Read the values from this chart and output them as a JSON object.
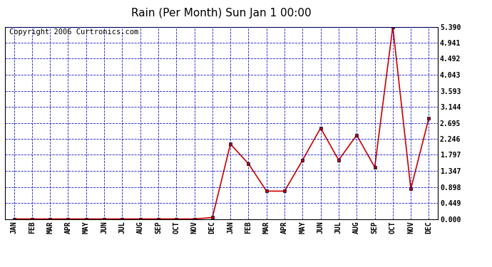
{
  "title": "Rain (Per Month) Sun Jan 1 00:00",
  "copyright": "Copyright 2006 Curtronics.com",
  "x_labels": [
    "JAN",
    "FEB",
    "MAR",
    "APR",
    "MAY",
    "JUN",
    "JUL",
    "AUG",
    "SEP",
    "OCT",
    "NOV",
    "DEC",
    "JAN",
    "FEB",
    "MAR",
    "APR",
    "MAY",
    "JUN",
    "JUL",
    "AUG",
    "SEP",
    "OCT",
    "NOV",
    "DEC"
  ],
  "y_values": [
    0.0,
    0.0,
    0.0,
    0.0,
    0.0,
    0.0,
    0.0,
    0.0,
    0.0,
    0.0,
    0.0,
    0.04,
    2.1,
    1.55,
    0.78,
    0.78,
    1.65,
    2.55,
    1.65,
    2.35,
    1.45,
    5.39,
    0.84,
    2.83
  ],
  "yticks": [
    0.0,
    0.449,
    0.898,
    1.347,
    1.797,
    2.246,
    2.695,
    3.144,
    3.593,
    4.043,
    4.492,
    4.941,
    5.39
  ],
  "ymax": 5.39,
  "ymin": 0.0,
  "line_color": "#cc0000",
  "marker_color": "#000000",
  "bg_color": "#ffffff",
  "plot_bg_color": "#ffffff",
  "grid_color": "#0000bb",
  "title_fontsize": 11,
  "copyright_fontsize": 7.5
}
